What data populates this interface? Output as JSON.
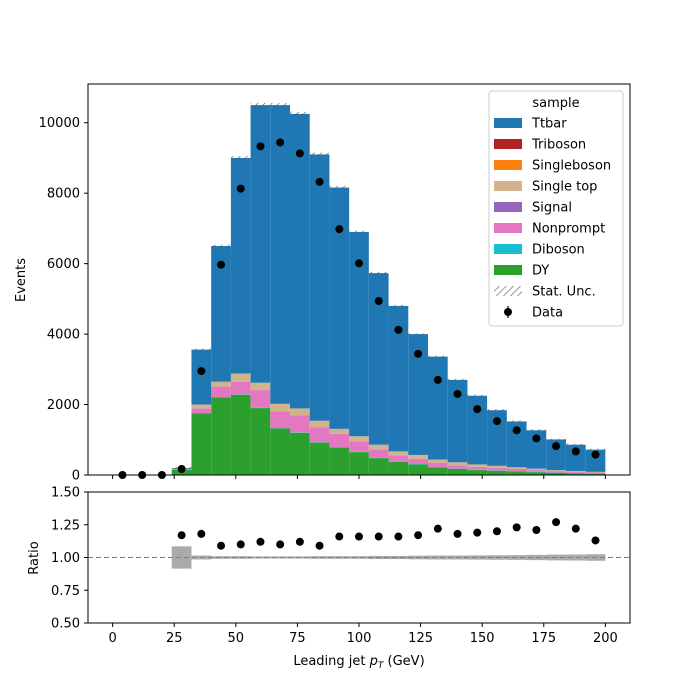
{
  "chart_data": [
    {
      "type": "stacked-histogram",
      "panel": "main",
      "bin_edges": [
        0,
        8,
        16,
        24,
        32,
        40,
        48,
        56,
        64,
        72,
        80,
        88,
        96,
        104,
        112,
        120,
        128,
        136,
        144,
        152,
        160,
        168,
        176,
        184,
        192,
        200
      ],
      "stack": [
        {
          "name": "DY",
          "color": "#2ca02c",
          "values": [
            0,
            0,
            0,
            150,
            1750,
            2200,
            2280,
            1900,
            1320,
            1200,
            920,
            780,
            650,
            480,
            370,
            300,
            220,
            170,
            140,
            120,
            100,
            80,
            60,
            50,
            40
          ]
        },
        {
          "name": "Diboson",
          "color": "#17becf",
          "values": [
            0,
            0,
            0,
            0,
            10,
            10,
            10,
            10,
            10,
            10,
            10,
            10,
            10,
            10,
            10,
            10,
            10,
            10,
            10,
            10,
            10,
            10,
            10,
            10,
            10
          ]
        },
        {
          "name": "Nonprompt",
          "color": "#e377c2",
          "values": [
            0,
            0,
            0,
            20,
            130,
            300,
            360,
            500,
            480,
            480,
            420,
            380,
            300,
            240,
            180,
            150,
            120,
            100,
            80,
            70,
            60,
            50,
            40,
            30,
            20
          ]
        },
        {
          "name": "Signal",
          "color": "#9467bd",
          "values": [
            0,
            0,
            0,
            0,
            0,
            0,
            0,
            0,
            0,
            0,
            0,
            0,
            0,
            0,
            0,
            0,
            0,
            0,
            0,
            0,
            0,
            0,
            0,
            0,
            0
          ]
        },
        {
          "name": "Single top",
          "color": "#d2b48c",
          "values": [
            0,
            0,
            0,
            10,
            110,
            140,
            230,
            210,
            210,
            200,
            190,
            140,
            140,
            130,
            110,
            110,
            90,
            80,
            70,
            60,
            50,
            40,
            30,
            20,
            20
          ]
        },
        {
          "name": "Singleboson",
          "color": "#ff7f0e",
          "values": [
            0,
            0,
            0,
            0,
            0,
            0,
            0,
            0,
            0,
            0,
            0,
            0,
            0,
            0,
            0,
            0,
            0,
            0,
            0,
            0,
            0,
            0,
            0,
            0,
            0
          ]
        },
        {
          "name": "Triboson",
          "color": "#b22222",
          "values": [
            0,
            0,
            0,
            0,
            0,
            0,
            0,
            0,
            0,
            0,
            0,
            0,
            0,
            0,
            0,
            0,
            0,
            0,
            0,
            0,
            0,
            0,
            0,
            0,
            0
          ]
        },
        {
          "name": "Ttbar",
          "color": "#1f77b4",
          "values": [
            0,
            0,
            0,
            20,
            1560,
            3850,
            6120,
            7880,
            8480,
            8360,
            7560,
            6850,
            5800,
            4870,
            4130,
            3430,
            2920,
            2340,
            1950,
            1580,
            1300,
            1090,
            870,
            750,
            630
          ]
        }
      ],
      "totals": [
        0,
        0,
        0,
        200,
        3560,
        6500,
        9000,
        10500,
        10500,
        10250,
        9100,
        8160,
        6900,
        5730,
        4800,
        3990,
        3360,
        2700,
        2250,
        1840,
        1520,
        1270,
        1000,
        860,
        720
      ],
      "data_points": {
        "name": "Data",
        "x": [
          4,
          12,
          20,
          28,
          36,
          44,
          52,
          60,
          68,
          76,
          84,
          92,
          100,
          108,
          116,
          124,
          132,
          140,
          148,
          156,
          164,
          172,
          180,
          188,
          196
        ],
        "y": [
          0,
          0,
          0,
          170,
          2950,
          5970,
          8130,
          9330,
          9440,
          9130,
          8320,
          6980,
          6010,
          4940,
          4120,
          3440,
          2700,
          2300,
          1870,
          1530,
          1270,
          1040,
          820,
          670,
          580
        ]
      },
      "uncertainty_label": "Stat. Unc.",
      "ylabel": "Events",
      "ylim": [
        0,
        11100
      ],
      "yticks": [
        0,
        2000,
        4000,
        6000,
        8000,
        10000
      ],
      "xlim": [
        -10,
        210
      ],
      "legend": {
        "title": "sample",
        "placement": "top-right",
        "entries": [
          "Ttbar",
          "Triboson",
          "Singleboson",
          "Single top",
          "Signal",
          "Nonprompt",
          "Diboson",
          "DY",
          "Stat. Unc.",
          "Data"
        ]
      }
    },
    {
      "type": "scatter",
      "panel": "ratio",
      "ylabel": "Ratio",
      "ylim": [
        0.5,
        1.5
      ],
      "yticks": [
        "0.50",
        "0.75",
        "1.00",
        "1.25",
        "1.50"
      ],
      "xlim": [
        -10,
        210
      ],
      "xticks": [
        "0",
        "25",
        "50",
        "75",
        "100",
        "125",
        "150",
        "175",
        "200"
      ],
      "xlabel": "Leading jet  p_T (GeV)",
      "reference_line": 1.0,
      "x": [
        28,
        36,
        44,
        52,
        60,
        68,
        76,
        84,
        92,
        100,
        108,
        116,
        124,
        132,
        140,
        148,
        156,
        164,
        172,
        180,
        188,
        196
      ],
      "y": [
        1.17,
        1.18,
        1.09,
        1.1,
        1.12,
        1.1,
        1.12,
        1.09,
        1.16,
        1.16,
        1.16,
        1.16,
        1.17,
        1.22,
        1.18,
        1.19,
        1.2,
        1.23,
        1.21,
        1.27,
        1.22,
        1.13
      ],
      "unc_halfwidth": [
        0,
        0,
        0,
        0.085,
        0.015,
        0.01,
        0.01,
        0.008,
        0.008,
        0.008,
        0.01,
        0.01,
        0.01,
        0.012,
        0.012,
        0.014,
        0.015,
        0.015,
        0.016,
        0.017,
        0.018,
        0.02,
        0.022,
        0.023,
        0.025
      ]
    }
  ],
  "axes_text": {
    "ylabel_main": "Events",
    "ylabel_ratio": "Ratio",
    "xlabel_prefix": "Leading jet  ",
    "xlabel_var": "p",
    "xlabel_sub": "T",
    "xlabel_suffix": " (GeV)"
  }
}
